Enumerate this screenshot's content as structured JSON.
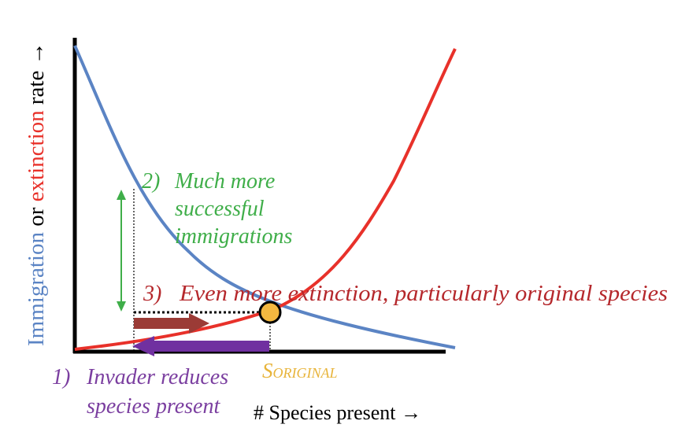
{
  "axes": {
    "y_label": {
      "immigration": "Immigration",
      "or_word": " or ",
      "extinction": "extinction",
      "rate_suffix": " rate →"
    },
    "x_label": "# Species present →"
  },
  "annotations": {
    "step2": {
      "number": "2)",
      "lines": [
        "Much more",
        "successful",
        "immigrations"
      ]
    },
    "step3": {
      "number": "3)",
      "text": "Even more extinction, particularly original species"
    },
    "step1": {
      "number": "1)",
      "lines": [
        "Invader reduces",
        "species present"
      ]
    },
    "s_original": {
      "main": "S",
      "subscript": "ORIGINAL"
    }
  },
  "colors": {
    "immigration": "#5b84c4",
    "extinction": "#e8312a",
    "step2_green": "#3fae49",
    "step3_red": "#b5282c",
    "step1_purple": "#7b3fa0",
    "s_original_gold": "#e8b43a",
    "equilibrium_fill": "#f4b840",
    "brown_arrow": "#9b3b36",
    "purple_arrow": "#7030a0",
    "axis": "#000000"
  },
  "icons": {
    "equilibrium": "equilibrium-point-icon",
    "right_arrow": "right-arrow-icon",
    "left_arrow": "left-arrow-icon",
    "double_arrow": "double-headed-arrow-icon"
  }
}
